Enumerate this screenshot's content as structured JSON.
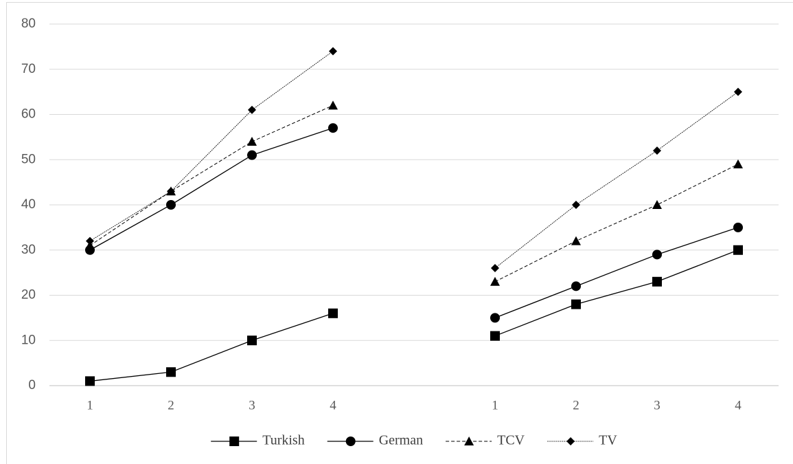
{
  "chart_data": {
    "type": "line",
    "categories": [
      "1",
      "2",
      "3",
      "4",
      null,
      "1",
      "2",
      "3",
      "4"
    ],
    "series": [
      {
        "name": "Turkish",
        "color": "#000000",
        "marker": "square",
        "dash": "solid",
        "values": [
          1,
          3,
          10,
          16,
          null,
          11,
          18,
          23,
          30
        ]
      },
      {
        "name": "German",
        "color": "#000000",
        "marker": "circle",
        "dash": "solid",
        "values": [
          30,
          40,
          51,
          57,
          null,
          15,
          22,
          29,
          35
        ]
      },
      {
        "name": "TCV",
        "color": "#000000",
        "marker": "triangle",
        "dash": "dashed",
        "values": [
          31,
          43,
          54,
          62,
          null,
          23,
          32,
          40,
          49
        ]
      },
      {
        "name": "TV",
        "color": "#000000",
        "marker": "diamond",
        "dash": "dotted",
        "values": [
          32,
          43,
          61,
          74,
          null,
          26,
          40,
          52,
          65
        ]
      }
    ],
    "ylim": [
      0,
      80
    ],
    "yticks": [
      0,
      10,
      20,
      30,
      40,
      50,
      60,
      70,
      80
    ],
    "grid": true,
    "legend": "bottom"
  }
}
